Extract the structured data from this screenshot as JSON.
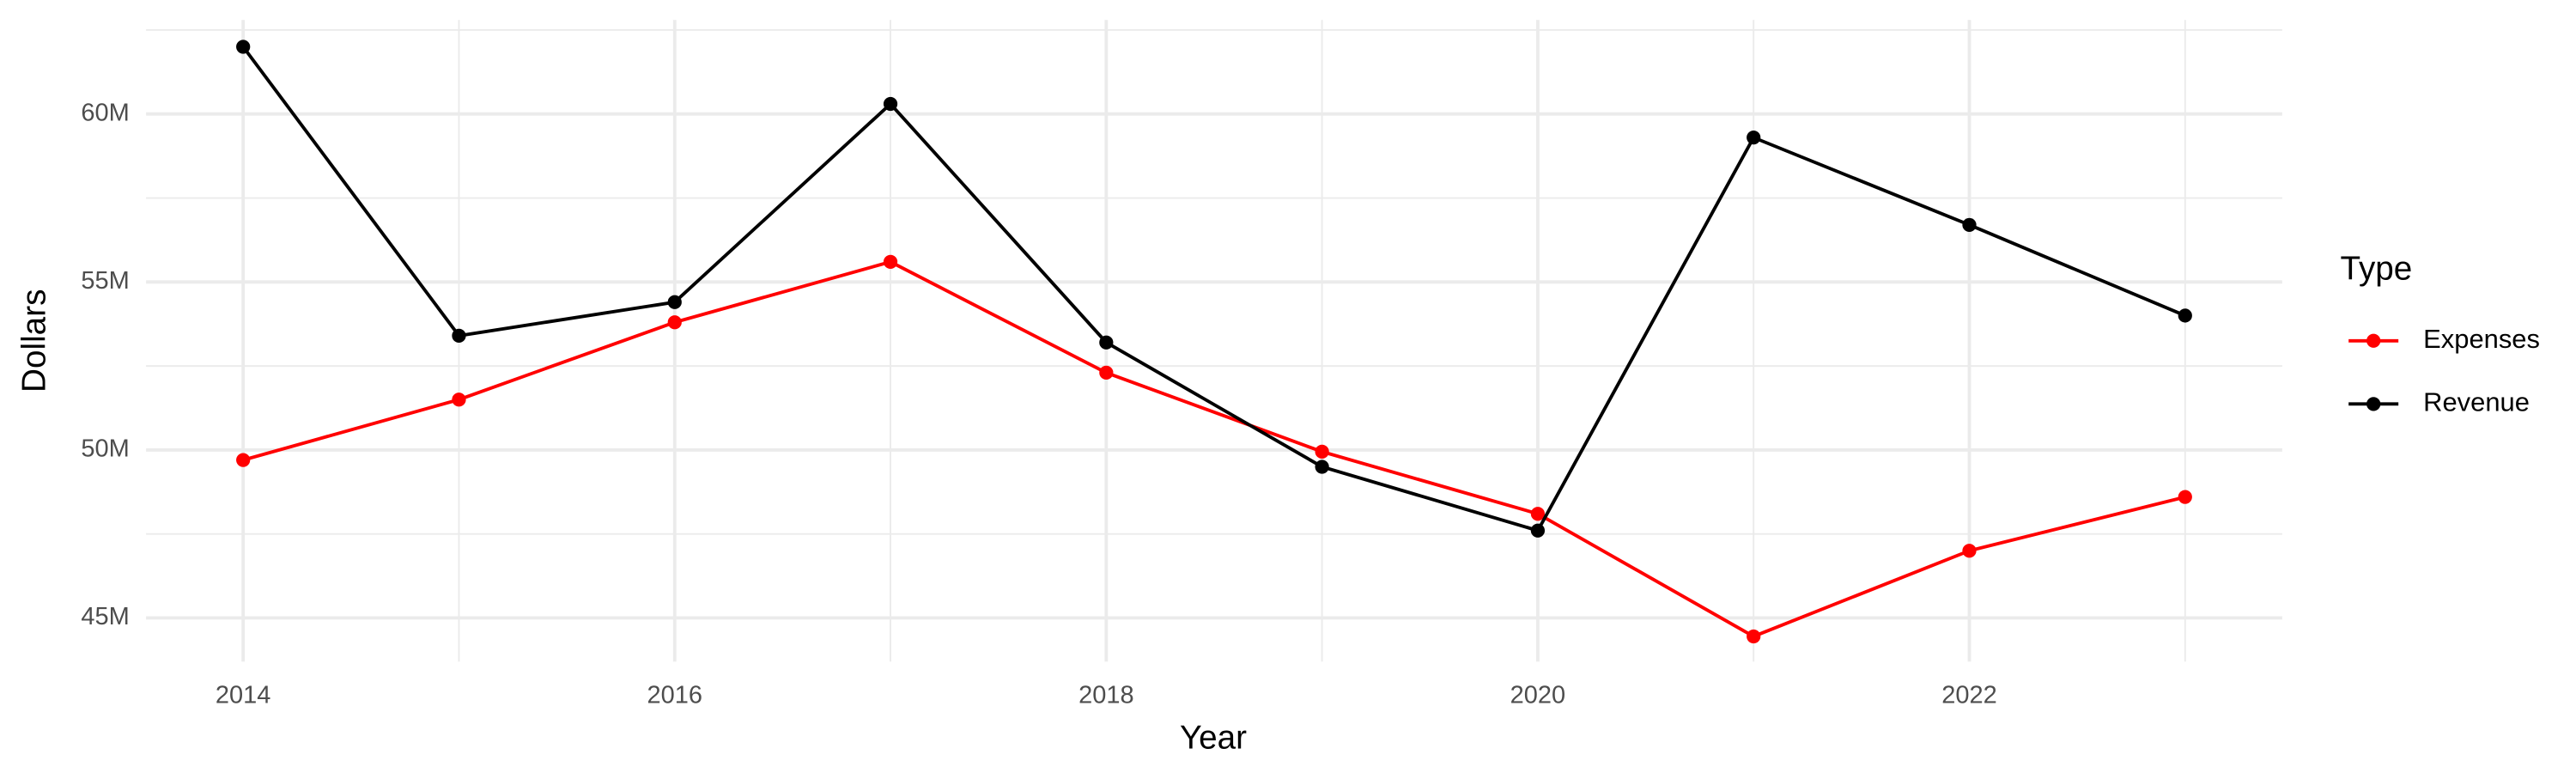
{
  "chart_data": {
    "type": "line",
    "x_label": "Year",
    "y_label": "Dollars",
    "legend_title": "Type",
    "legend_position": "right",
    "grid": true,
    "x": [
      2014,
      2015,
      2016,
      2017,
      2018,
      2019,
      2020,
      2021,
      2022,
      2023
    ],
    "series": [
      {
        "name": "Expenses",
        "color": "red",
        "values": [
          49700000,
          51500000,
          53800000,
          55600000,
          52300000,
          49950000,
          48100000,
          44450000,
          47000000,
          48600000
        ]
      },
      {
        "name": "Revenue",
        "color": "black",
        "values": [
          62000000,
          53400000,
          54400000,
          60300000,
          53200000,
          49500000,
          47600000,
          59300000,
          56700000,
          54000000
        ]
      }
    ],
    "xlim": [
      2013.55,
      2023.45
    ],
    "xticks": [
      2014,
      2016,
      2018,
      2020,
      2022
    ],
    "ylim": [
      43700000,
      62800000
    ],
    "yticks": [
      {
        "value": 45000000,
        "label": "45M"
      },
      {
        "value": 50000000,
        "label": "50M"
      },
      {
        "value": 55000000,
        "label": "55M"
      },
      {
        "value": 60000000,
        "label": "60M"
      }
    ]
  }
}
